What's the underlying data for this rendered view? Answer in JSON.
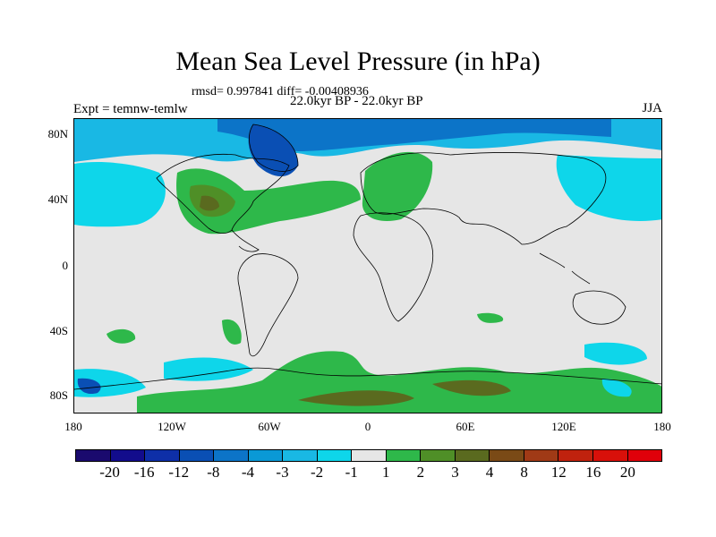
{
  "title": "Mean Sea Level Pressure (in hPa)",
  "subtitle_stats": "rmsd= 0.997841 diff= -0.00408936",
  "subtitle_period": "22.0kyr BP - 22.0kyr BP",
  "left_label": "Expt = temnw-temlw",
  "right_label": "JJA",
  "latitude_ticks": [
    "80N",
    "40N",
    "0",
    "40S",
    "80S"
  ],
  "longitude_ticks": [
    "180",
    "120W",
    "60W",
    "0",
    "60E",
    "120E",
    "180"
  ],
  "colorbar": {
    "labels": [
      "-20",
      "-16",
      "-12",
      "-8",
      "-4",
      "-3",
      "-2",
      "-1",
      "1",
      "2",
      "3",
      "4",
      "8",
      "12",
      "16",
      "20"
    ],
    "colors": [
      "#1a0a6e",
      "#120c8c",
      "#0e2fa8",
      "#0a4fb4",
      "#0c74c8",
      "#0a99d6",
      "#19b8e4",
      "#0ed6ea",
      "#e6e6e6",
      "#2eb84a",
      "#4f8f27",
      "#5a6a1f",
      "#7a4a16",
      "#a03a16",
      "#c0220e",
      "#d8100a",
      "#e0000a"
    ]
  }
}
